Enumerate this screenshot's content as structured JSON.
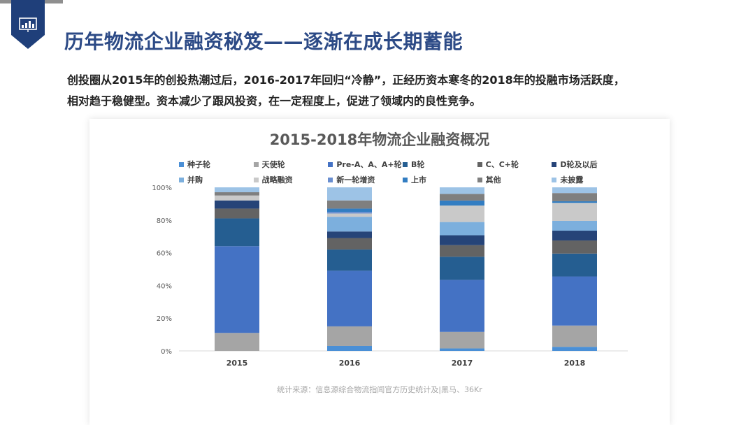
{
  "header": {
    "title": "历年物流企业融资秘笈——逐渐在成长期蓄能",
    "icon": "chart-presentation-icon",
    "accent_color": "#1f3f7a"
  },
  "intro": {
    "line1": "创投圈从2015年的创投热潮过后，2016-2017年回归“冷静”，正经历资本寒冬的2018年的投融市场活跃度，",
    "line2": "相对趋于稳健型。资本减少了跟风投资，在一定程度上，促进了领域内的良性竞争。"
  },
  "source": "统计来源：信息源综合物流指闻官方历史统计及|黑马、36Kr",
  "chart_data": {
    "type": "bar",
    "stacked": "percent",
    "title": "2015-2018年物流企业融资概况",
    "xlabel": "",
    "ylabel": "",
    "categories": [
      "2015",
      "2016",
      "2017",
      "2018"
    ],
    "y_ticks": [
      "0%",
      "20%",
      "40%",
      "60%",
      "80%",
      "100%"
    ],
    "ylim": [
      0,
      100
    ],
    "legend_position": "top",
    "series": [
      {
        "name": "种子轮",
        "color": "#4a8fd6",
        "values": [
          0,
          3,
          1.5,
          2.5
        ]
      },
      {
        "name": "天使轮",
        "color": "#a5a5a5",
        "values": [
          11,
          12,
          10,
          13
        ]
      },
      {
        "name": "Pre-A、A、A+轮",
        "color": "#4472c4",
        "values": [
          53,
          34,
          31.5,
          30
        ]
      },
      {
        "name": "B轮",
        "color": "#255e91",
        "values": [
          17,
          13,
          14,
          14
        ]
      },
      {
        "name": "C、C+轮",
        "color": "#636363",
        "values": [
          6,
          7,
          7,
          8
        ]
      },
      {
        "name": "D轮及以后",
        "color": "#264478",
        "values": [
          5,
          4,
          6,
          6
        ]
      },
      {
        "name": "并购",
        "color": "#7cafdd",
        "values": [
          0,
          9,
          8,
          6
        ]
      },
      {
        "name": "战略融资",
        "color": "#c9c9c9",
        "values": [
          3,
          2,
          10,
          11
        ]
      },
      {
        "name": "新一轮增资",
        "color": "#698ed0",
        "values": [
          0,
          1,
          0,
          0
        ]
      },
      {
        "name": "上市",
        "color": "#327dc2",
        "values": [
          0,
          2,
          3,
          1
        ]
      },
      {
        "name": "其他",
        "color": "#7f7f7f",
        "values": [
          2,
          5,
          4,
          5
        ]
      },
      {
        "name": "未披露",
        "color": "#9dc3e6",
        "values": [
          3,
          8,
          4,
          3.5
        ]
      }
    ]
  }
}
